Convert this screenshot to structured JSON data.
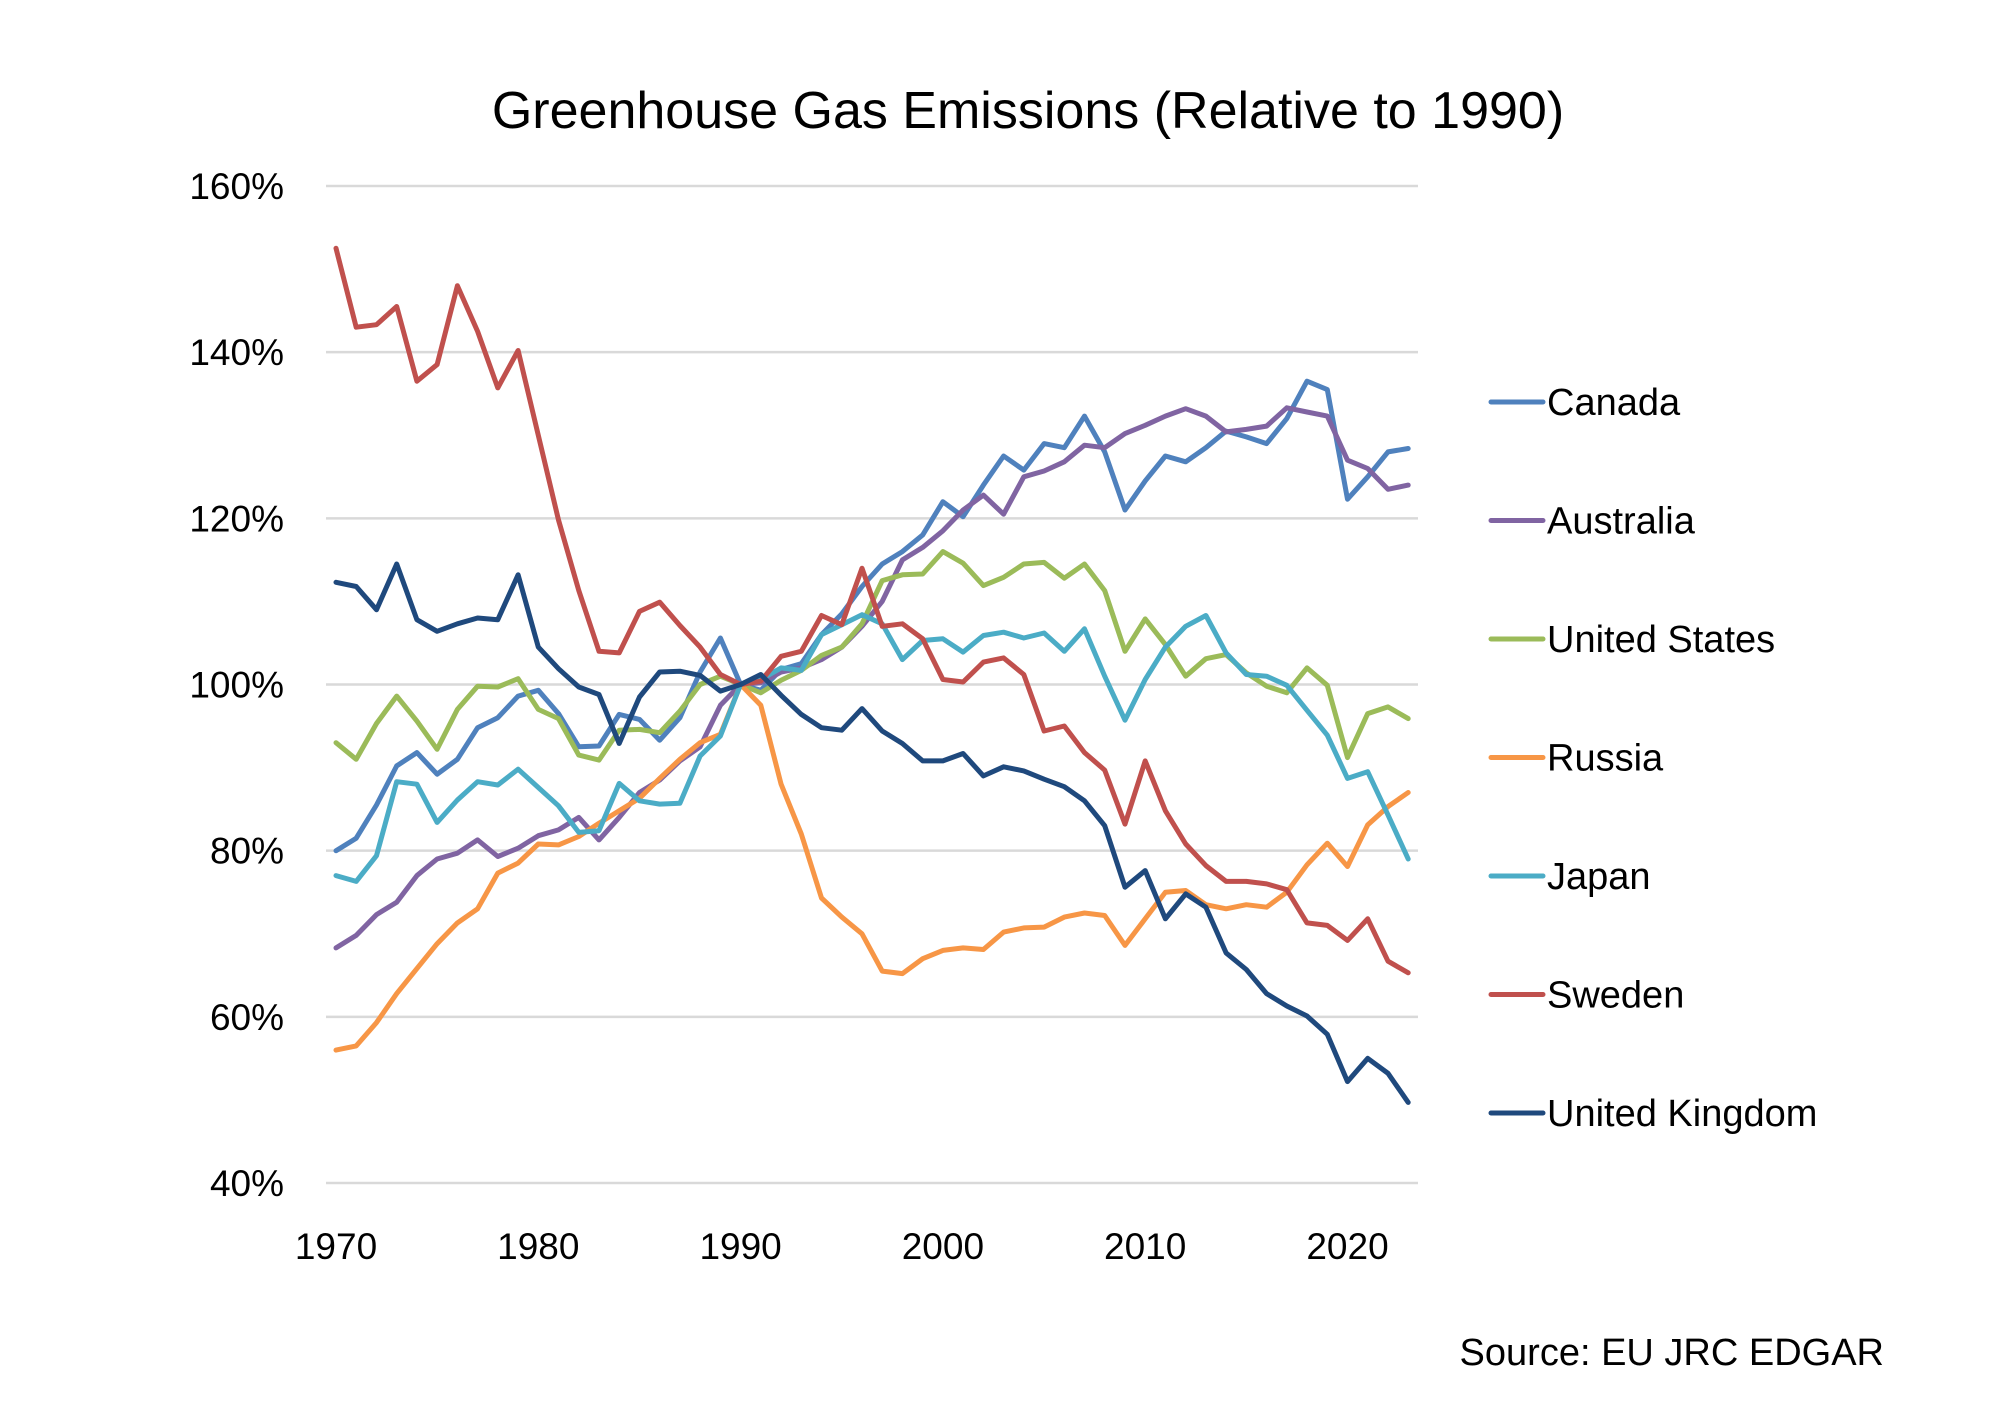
{
  "chart_data": {
    "type": "line",
    "title": "Greenhouse Gas Emissions (Relative to 1990)",
    "xlabel": "",
    "ylabel": "",
    "source": "Source: EU JRC EDGAR",
    "xlim": [
      1970,
      2023
    ],
    "ylim": [
      40,
      160
    ],
    "grid": true,
    "legend_position": "right",
    "x_ticks": [
      1970,
      1980,
      1990,
      2000,
      2010,
      2020
    ],
    "x_tick_labels": [
      "1970",
      "1980",
      "1990",
      "2000",
      "2010",
      "2020"
    ],
    "y_ticks": [
      40,
      60,
      80,
      100,
      120,
      140,
      160
    ],
    "y_tick_labels": [
      "40%",
      "60%",
      "80%",
      "100%",
      "120%",
      "140%",
      "160%"
    ],
    "x": [
      1970,
      1971,
      1972,
      1973,
      1974,
      1975,
      1976,
      1977,
      1978,
      1979,
      1980,
      1981,
      1982,
      1983,
      1984,
      1985,
      1986,
      1987,
      1988,
      1989,
      1990,
      1991,
      1992,
      1993,
      1994,
      1995,
      1996,
      1997,
      1998,
      1999,
      2000,
      2001,
      2002,
      2003,
      2004,
      2005,
      2006,
      2007,
      2008,
      2009,
      2010,
      2011,
      2012,
      2013,
      2014,
      2015,
      2016,
      2017,
      2018,
      2019,
      2020,
      2021,
      2022,
      2023
    ],
    "series": [
      {
        "name": "Canada",
        "color": "#4f81bd",
        "values": [
          80,
          81.5,
          85.5,
          90.2,
          91.8,
          89.2,
          91,
          94.8,
          96,
          98.6,
          99.3,
          96.5,
          92.5,
          92.6,
          96.4,
          95.8,
          93.3,
          96,
          101.5,
          105.6,
          100,
          99.3,
          101.8,
          102.5,
          106,
          108.5,
          111.8,
          114.5,
          116,
          118,
          122,
          120.2,
          124,
          127.5,
          125.8,
          129,
          128.5,
          132.3,
          128,
          121,
          124.5,
          127.5,
          126.8,
          128.5,
          130.5,
          129.8,
          129,
          132,
          136.5,
          135.5,
          122.3,
          125,
          128,
          128.4
        ]
      },
      {
        "name": "Australia",
        "color": "#8064a2",
        "values": [
          68.3,
          69.8,
          72.3,
          73.8,
          77,
          79,
          79.7,
          81.3,
          79.3,
          80.3,
          81.8,
          82.5,
          84,
          81.3,
          84,
          87,
          88.5,
          90.8,
          92.5,
          97.5,
          100,
          100.2,
          101.5,
          102,
          103,
          104.5,
          107,
          110,
          115,
          116.5,
          118.5,
          121,
          122.8,
          120.5,
          125,
          125.7,
          126.8,
          128.8,
          128.5,
          130.2,
          131.2,
          132.3,
          133.2,
          132.3,
          130.4,
          130.7,
          131.1,
          133.3,
          132.8,
          132.3,
          127,
          126,
          123.5,
          124
        ]
      },
      {
        "name": "United States",
        "color": "#9bbb59",
        "values": [
          93,
          91,
          95.3,
          98.6,
          95.6,
          92.2,
          97,
          99.8,
          99.7,
          100.7,
          97,
          95.9,
          91.5,
          90.9,
          94.5,
          94.6,
          94.2,
          96.8,
          100,
          101,
          100,
          99,
          100.5,
          101.7,
          103.5,
          104.5,
          107.3,
          112.5,
          113.2,
          113.3,
          116,
          114.6,
          111.9,
          112.9,
          114.5,
          114.7,
          112.8,
          114.5,
          111.3,
          104,
          107.9,
          104.8,
          101,
          103.1,
          103.6,
          101.4,
          99.8,
          99,
          102,
          99.9,
          91.2,
          96.5,
          97.3,
          95.9
        ]
      },
      {
        "name": "Russia",
        "color": "#f79646",
        "values": [
          56,
          56.5,
          59.3,
          62.8,
          65.8,
          68.8,
          71.3,
          73,
          77.3,
          78.5,
          80.8,
          80.7,
          81.7,
          83.3,
          84.8,
          86.3,
          88.7,
          91,
          93,
          94,
          100,
          97.5,
          88,
          82,
          74.3,
          72,
          70,
          65.5,
          65.2,
          67,
          68,
          68.3,
          68.1,
          70.2,
          70.7,
          70.8,
          72,
          72.5,
          72.2,
          68.6,
          71.8,
          75,
          75.2,
          73.5,
          73,
          73.5,
          73.2,
          75,
          78.3,
          80.9,
          78.1,
          83.1,
          85.3,
          87
        ]
      },
      {
        "name": "Japan",
        "color": "#4bacc6",
        "values": [
          77,
          76.3,
          79.4,
          88.3,
          88,
          83.4,
          86.1,
          88.3,
          87.9,
          89.8,
          87.6,
          85.4,
          82.2,
          82.4,
          88.1,
          86,
          85.6,
          85.7,
          91.4,
          93.8,
          100,
          100.6,
          102,
          101.7,
          106,
          107.2,
          108.4,
          107.3,
          103,
          105.3,
          105.5,
          103.9,
          105.9,
          106.3,
          105.6,
          106.2,
          104,
          106.7,
          101,
          95.7,
          100.6,
          104.5,
          107,
          108.3,
          103.8,
          101.2,
          101,
          99.9,
          96.9,
          93.9,
          88.7,
          89.5,
          84.3,
          79
        ]
      },
      {
        "name": "Sweden",
        "color": "#c0504d",
        "values": [
          152.5,
          143,
          143.3,
          145.5,
          136.5,
          138.5,
          148,
          142.5,
          135.7,
          140.2,
          130,
          119.8,
          111.3,
          104,
          103.8,
          108.8,
          109.9,
          107.1,
          104.5,
          101.2,
          100,
          100.4,
          103.4,
          104,
          108.3,
          107.2,
          114,
          107,
          107.3,
          105.5,
          100.6,
          100.3,
          102.7,
          103.2,
          101.2,
          94.4,
          95,
          91.8,
          89.7,
          83.2,
          90.8,
          84.8,
          80.8,
          78.2,
          76.3,
          76.3,
          76,
          75.3,
          71.3,
          71,
          69.2,
          71.8,
          66.7,
          65.3
        ]
      },
      {
        "name": "United Kingdom",
        "color": "#1f497d",
        "values": [
          112.3,
          111.8,
          109,
          114.5,
          107.8,
          106.4,
          107.3,
          108,
          107.8,
          113.2,
          104.5,
          101.9,
          99.7,
          98.8,
          92.9,
          98.5,
          101.5,
          101.6,
          101.1,
          99.2,
          100,
          101.2,
          98.7,
          96.4,
          94.8,
          94.5,
          97.1,
          94.4,
          92.9,
          90.8,
          90.8,
          91.7,
          89,
          90.1,
          89.6,
          88.6,
          87.7,
          86,
          83,
          75.6,
          77.6,
          71.8,
          74.8,
          73.2,
          67.7,
          65.7,
          62.8,
          61.3,
          60.1,
          57.9,
          52.2,
          55,
          53.2,
          49.7
        ]
      }
    ]
  }
}
